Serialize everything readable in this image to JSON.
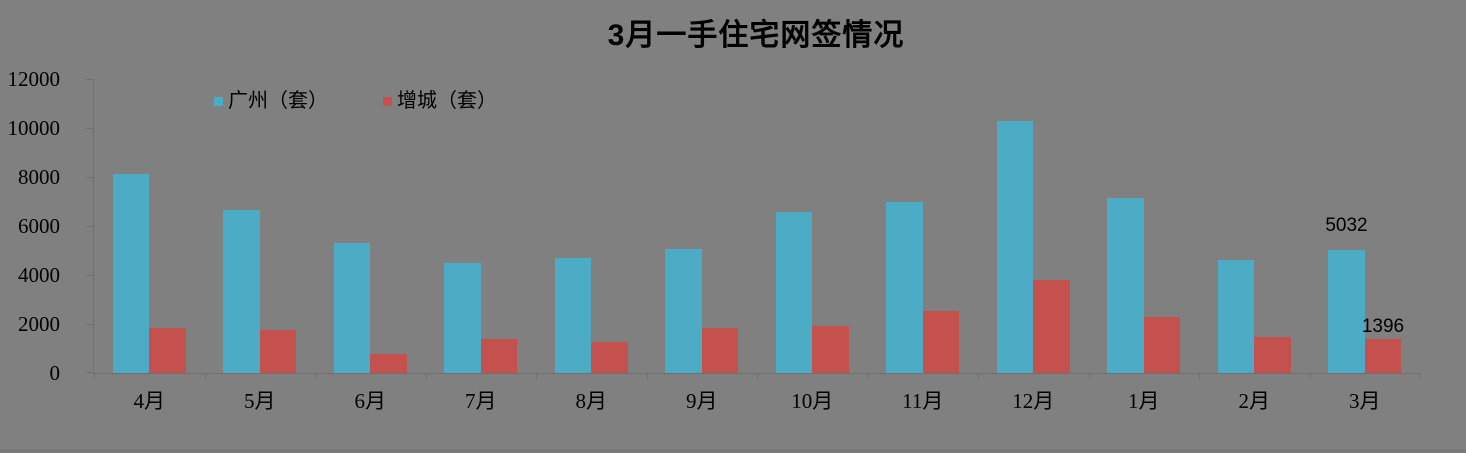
{
  "title": "3月一手住宅网签情况",
  "chart_data": {
    "type": "bar",
    "title": "3月一手住宅网签情况",
    "categories": [
      "4月",
      "5月",
      "6月",
      "7月",
      "8月",
      "9月",
      "10月",
      "11月",
      "12月",
      "1月",
      "2月",
      "3月"
    ],
    "series": [
      {
        "name": "广州（套）",
        "color": "#4CACC6",
        "values": [
          8120,
          6640,
          5310,
          4490,
          4680,
          5050,
          6580,
          6980,
          10300,
          7160,
          4600,
          5032
        ],
        "value_labels": [
          "",
          "",
          "",
          "",
          "",
          "",
          "",
          "",
          "",
          "",
          "",
          "5032"
        ]
      },
      {
        "name": "增城（套）",
        "color": "#C4514D",
        "values": [
          1850,
          1760,
          790,
          1380,
          1270,
          1830,
          1930,
          2530,
          3780,
          2300,
          1480,
          1396
        ],
        "value_labels": [
          "",
          "",
          "",
          "",
          "",
          "",
          "",
          "",
          "",
          "",
          "",
          "1396"
        ]
      }
    ],
    "xlabel": "",
    "ylabel": "",
    "ylim": [
      0,
      12000
    ],
    "ytick_step": 2000,
    "yticks": [
      0,
      2000,
      4000,
      6000,
      8000,
      10000,
      12000
    ],
    "grid": false,
    "legend_position": "top-left-inside",
    "background_color": "#808080",
    "axis_color": "#6f6f6f",
    "text_color": "#000000"
  }
}
